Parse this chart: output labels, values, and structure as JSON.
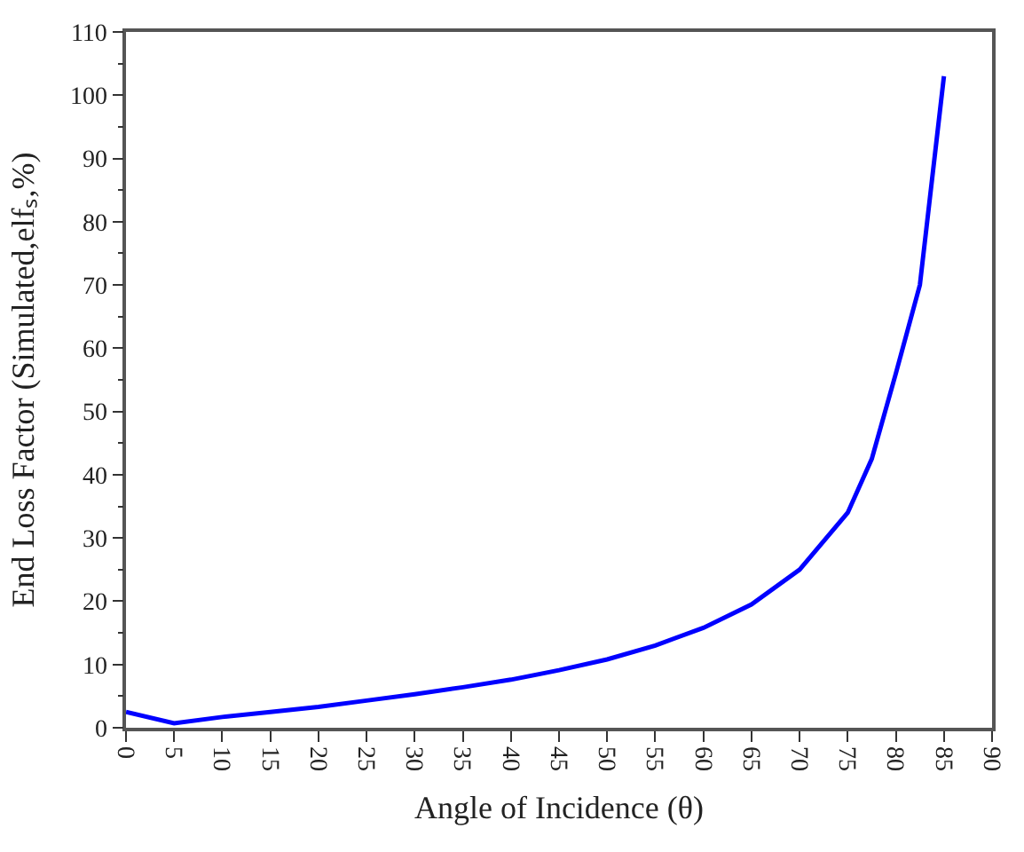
{
  "chart_data": {
    "type": "line",
    "xlabel": "Angle of Incidence (θ)",
    "ylabel": "End Loss Factor (Simulated,elfₛ,%)",
    "x": [
      0,
      5,
      10,
      15,
      20,
      25,
      30,
      35,
      40,
      45,
      50,
      55,
      60,
      65,
      70,
      75,
      77.5,
      80,
      82.5,
      85
    ],
    "series": [
      {
        "color": "#0000ff",
        "values": [
          2.5,
          0.7,
          1.7,
          2.5,
          3.3,
          4.3,
          5.3,
          6.4,
          7.6,
          9.1,
          10.8,
          13,
          15.8,
          19.5,
          25,
          34,
          42.5,
          56,
          70,
          103
        ]
      }
    ],
    "xlim": [
      0,
      90
    ],
    "ylim": [
      0,
      110
    ],
    "xticks": [
      0,
      5,
      10,
      15,
      20,
      25,
      30,
      35,
      40,
      45,
      50,
      55,
      60,
      65,
      70,
      75,
      80,
      85,
      90
    ],
    "yticks": [
      0,
      10,
      20,
      30,
      40,
      50,
      60,
      70,
      80,
      90,
      100,
      110
    ],
    "marker": "none",
    "line_style": "solid"
  }
}
